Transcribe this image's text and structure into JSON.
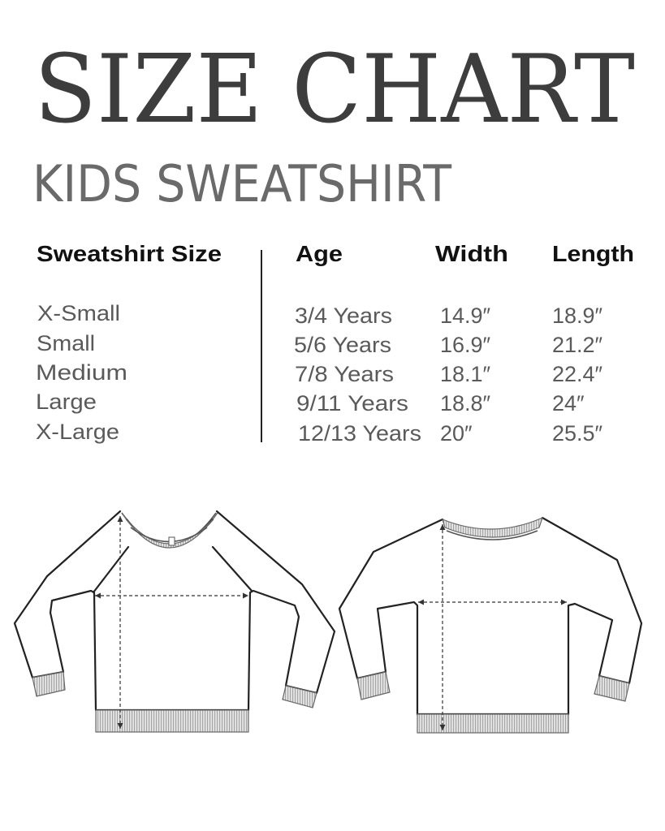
{
  "title": "SIZE CHART",
  "subtitle": "KIDS SWEATSHIRT",
  "table": {
    "headers": {
      "size": "Sweatshirt Size",
      "age": "Age",
      "width": "Width",
      "length": "Length"
    },
    "rows": [
      {
        "size": "X-Small",
        "age": "3/4 Years",
        "width": "14.9″",
        "length": "18.9″"
      },
      {
        "size": "Small",
        "age": "5/6 Years",
        "width": "16.9″",
        "length": "21.2″"
      },
      {
        "size": "Medium",
        "age": "7/8 Years",
        "width": "18.1″",
        "length": "22.4″"
      },
      {
        "size": "Large",
        "age": "9/11 Years",
        "width": "18.8″",
        "length": "24″"
      },
      {
        "size": "X-Large",
        "age": "12/13 Years",
        "width": "20″",
        "length": "25.5″"
      }
    ]
  },
  "colors": {
    "title": "#3d3d3d",
    "subtitle": "#6a6a6a",
    "header": "#111111",
    "cell": "#5a5a5a"
  }
}
